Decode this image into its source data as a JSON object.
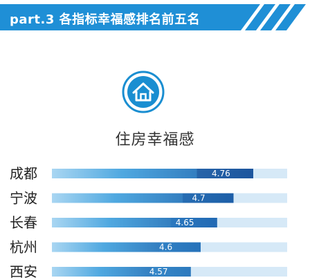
{
  "header": {
    "title": "part.3 各指标幸福感排名前五名",
    "icon": "house-icon"
  },
  "colors": {
    "banner": "#1f8fd6",
    "bar_light": "#d6e9f7",
    "bar_mid": "#5fb3e6",
    "bar_dark": "#1e5fa8",
    "circle": "#1a8ed1"
  },
  "chart_data": {
    "type": "bar",
    "title": "住房幸福感",
    "orientation": "horizontal",
    "categories": [
      "成都",
      "宁波",
      "长春",
      "杭州",
      "西安"
    ],
    "values": [
      4.76,
      4.7,
      4.65,
      4.6,
      4.57
    ],
    "value_labels": [
      "4.76",
      "4.7",
      "4.65",
      "4.6",
      "4.57"
    ]
  }
}
